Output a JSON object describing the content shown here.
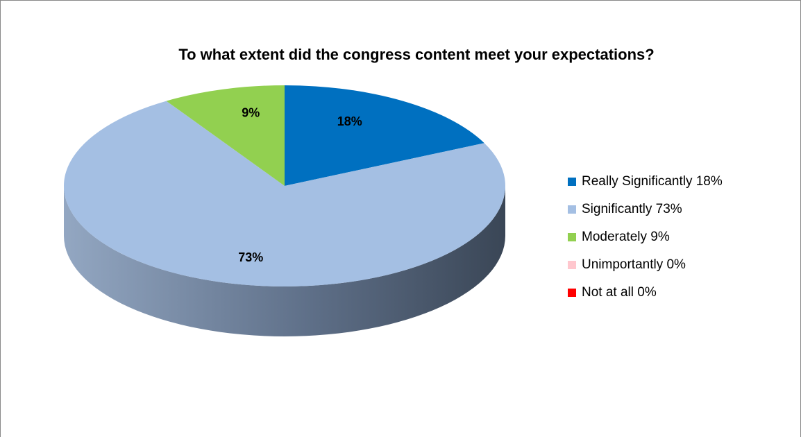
{
  "chart_data": {
    "type": "pie3d",
    "title": "To what extent did the congress content meet your expectations?",
    "categories": [
      "Really Significantly 18%",
      "Significantly 73%",
      "Moderately 9%",
      "Unimportantly 0%",
      "Not at all 0%"
    ],
    "values": [
      18,
      73,
      9,
      0,
      0
    ],
    "value_labels": [
      "18%",
      "73%",
      "9%",
      null,
      null
    ],
    "colors": [
      "#0070c0",
      "#a4bfe3",
      "#92d050",
      "#ffc7ce",
      "#ff0000"
    ],
    "legend": "right"
  }
}
